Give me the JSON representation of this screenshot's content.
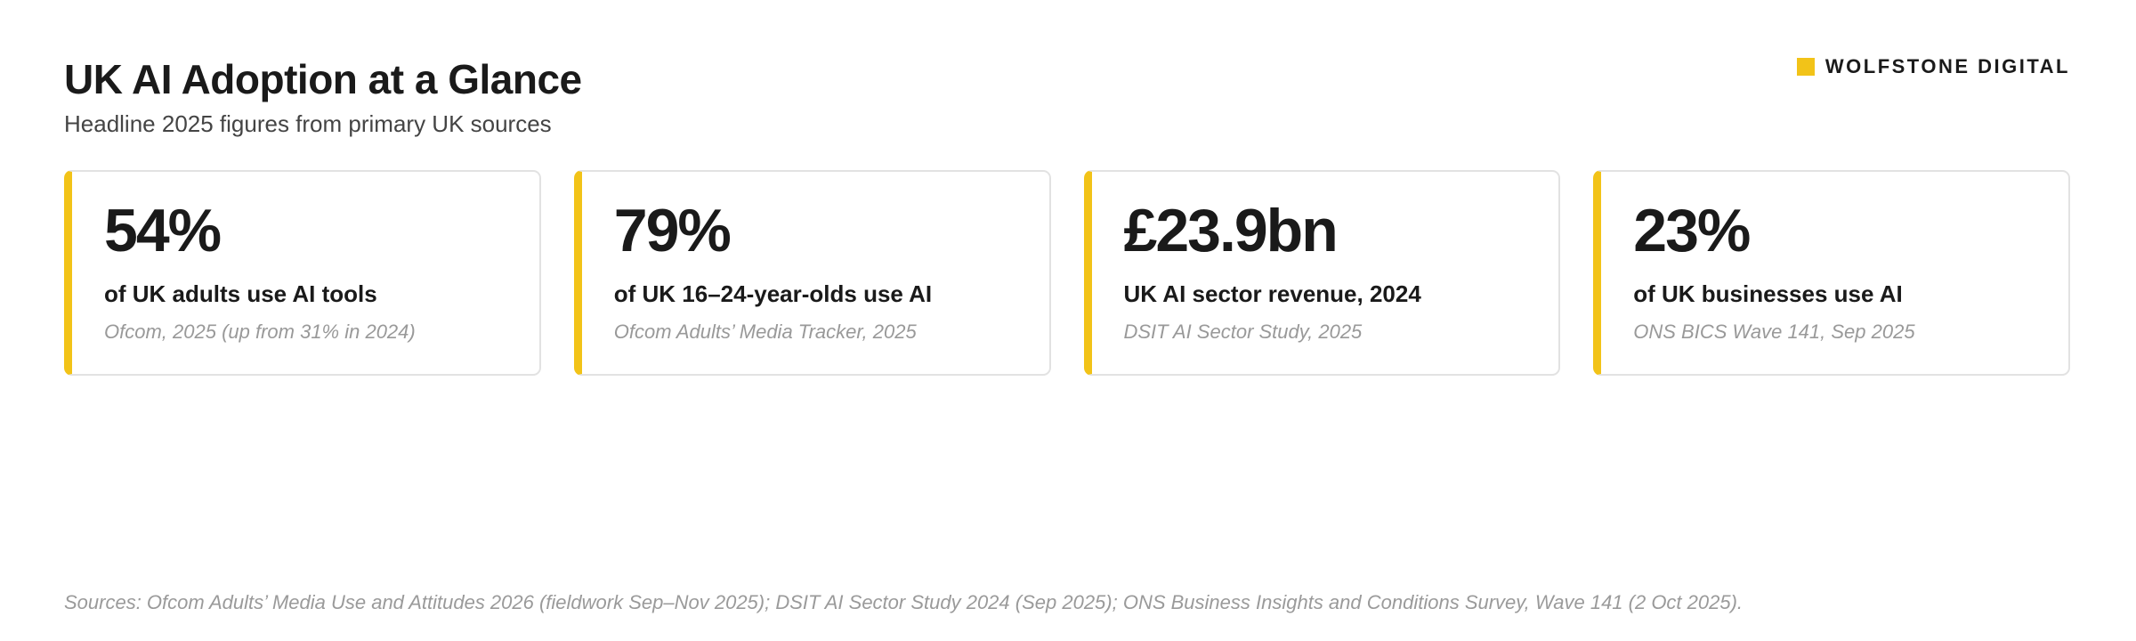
{
  "header": {
    "title": "UK AI Adoption at a Glance",
    "subtitle": "Headline 2025 figures from primary UK sources",
    "brand": "WOLFSTONE DIGITAL"
  },
  "cards": [
    {
      "value": "54%",
      "label": "of UK adults use AI tools",
      "source": "Ofcom, 2025 (up from 31% in 2024)"
    },
    {
      "value": "79%",
      "label": "of UK 16–24-year-olds use AI",
      "source": "Ofcom Adults’ Media Tracker, 2025"
    },
    {
      "value": "£23.9bn",
      "label": "UK AI sector revenue, 2024",
      "source": "DSIT AI Sector Study, 2025"
    },
    {
      "value": "23%",
      "label": "of UK businesses use AI",
      "source": "ONS BICS Wave 141, Sep 2025"
    }
  ],
  "footer": "Sources: Ofcom Adults’ Media Use and Attitudes 2026 (fieldwork Sep–Nov 2025); DSIT AI Sector Study 2024 (Sep 2025); ONS Business Insights and Conditions Survey, Wave 141 (2 Oct 2025)."
}
